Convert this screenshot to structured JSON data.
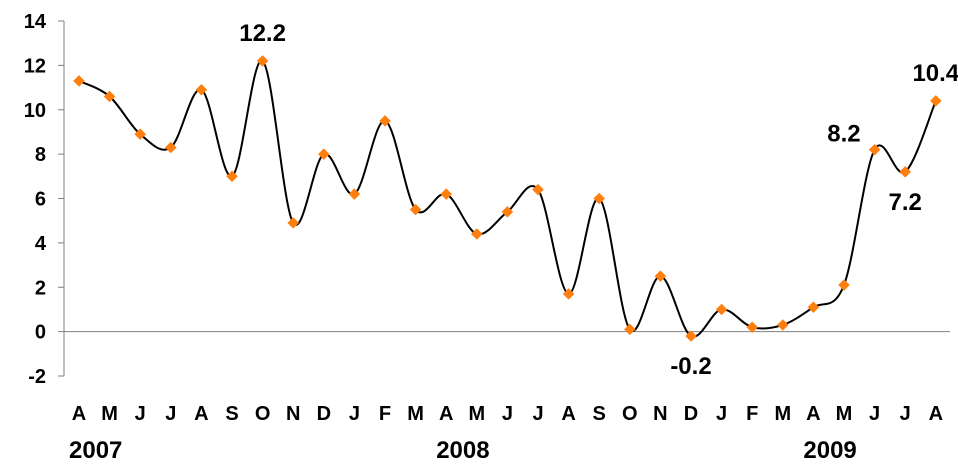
{
  "chart_data": {
    "type": "line",
    "title": "",
    "xlabel": "",
    "ylabel": "",
    "ylim": [
      -2,
      14
    ],
    "yticks": [
      -2,
      0,
      2,
      4,
      6,
      8,
      10,
      12,
      14
    ],
    "ytick_labels": [
      "-2",
      "0",
      "2",
      "4",
      "6",
      "8",
      "10",
      "12",
      "14"
    ],
    "categories": [
      "A",
      "M",
      "J",
      "J",
      "A",
      "S",
      "O",
      "N",
      "D",
      "J",
      "F",
      "M",
      "A",
      "M",
      "J",
      "J",
      "A",
      "S",
      "O",
      "N",
      "D",
      "J",
      "F",
      "M",
      "A",
      "M",
      "J",
      "J",
      "A"
    ],
    "years": [
      {
        "label": "2007",
        "category_index": 0
      },
      {
        "label": "2008",
        "category_index": 12
      },
      {
        "label": "2009",
        "category_index": 24
      }
    ],
    "series": [
      {
        "values": [
          11.3,
          10.6,
          8.9,
          8.3,
          10.9,
          7.0,
          12.2,
          4.9,
          8.0,
          6.2,
          9.5,
          5.5,
          6.2,
          4.4,
          5.4,
          6.4,
          1.7,
          6.0,
          0.1,
          2.5,
          -0.2,
          1.0,
          0.2,
          0.3,
          1.1,
          2.1,
          8.2,
          7.2,
          10.4
        ],
        "line_color": "#000000",
        "marker_color": "#ff7f0e",
        "marker": "diamond",
        "smooth": true
      }
    ],
    "data_labels": [
      {
        "index": 6,
        "text": "12.2",
        "position": "above"
      },
      {
        "index": 20,
        "text": "-0.2",
        "position": "below"
      },
      {
        "index": 26,
        "text": "8.2",
        "position": "left"
      },
      {
        "index": 27,
        "text": "7.2",
        "position": "below"
      },
      {
        "index": 28,
        "text": "10.4",
        "position": "above"
      }
    ],
    "grid": false,
    "zero_line": true,
    "legend": "none"
  }
}
